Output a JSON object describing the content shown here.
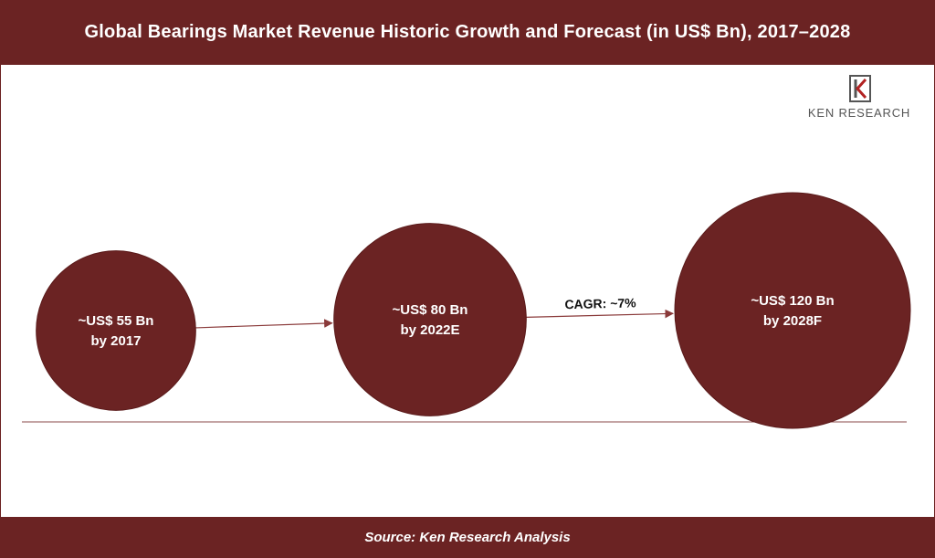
{
  "header": {
    "title": "Global Bearings Market Revenue Historic Growth and Forecast (in US$ Bn), 2017–2028"
  },
  "logo": {
    "text": "KEN RESEARCH",
    "icon": "ken-research-logo-icon"
  },
  "footer": {
    "source": "Source: Ken Research Analysis"
  },
  "colors": {
    "bubble": "#6b2323",
    "bar": "#6b2323",
    "arrow": "#8a3a3a",
    "text": "#ffffff",
    "logo_accent": "#b22222"
  },
  "chart_data": {
    "type": "bubble",
    "points": [
      {
        "year": "2017",
        "value": 55,
        "unit": "US$ Bn",
        "line1": "~US$ 55 Bn",
        "line2": "by 2017"
      },
      {
        "year": "2022E",
        "value": 80,
        "unit": "US$ Bn",
        "line1": "~US$ 80 Bn",
        "line2": "by 2022E"
      },
      {
        "year": "2028F",
        "value": 120,
        "unit": "US$ Bn",
        "line1": "~US$ 120 Bn",
        "line2": "by 2028F"
      }
    ],
    "annotations": [
      {
        "text": "CAGR: ~7%",
        "between": [
          "2022E",
          "2028F"
        ]
      }
    ]
  }
}
